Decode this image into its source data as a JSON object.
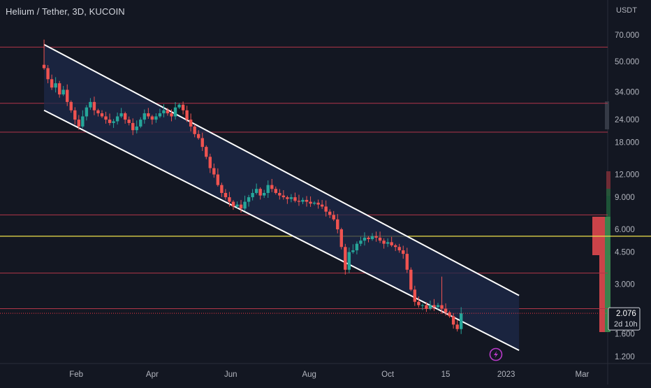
{
  "chart_data": {
    "type": "candlestick",
    "title": "Helium / Tether, 3D, KUCOIN",
    "price_unit": "USDT",
    "y_scale": "log",
    "ylim": [
      1.1,
      85
    ],
    "x_tick_labels": [
      "Feb",
      "Apr",
      "Jun",
      "Aug",
      "Oct",
      "15",
      "2023",
      "Mar"
    ],
    "y_tick_labels": [
      "70.000",
      "50.000",
      "34.000",
      "24.000",
      "18.000",
      "12.000",
      "9.000",
      "6.000",
      "4.500",
      "3.000",
      "1.600",
      "1.200"
    ],
    "last_price": "2.076",
    "countdown": "2d 10h",
    "horizontal_levels": {
      "red": [
        60,
        29.5,
        20.5,
        7.2,
        3.45,
        2.2
      ],
      "yellow": [
        5.5
      ]
    },
    "channel": {
      "upper": [
        [
          "2022-01-07",
          62
        ],
        [
          "2023-01-11",
          2.6
        ]
      ],
      "lower": [
        [
          "2022-01-07",
          27
        ],
        [
          "2023-01-11",
          1.3
        ]
      ]
    },
    "colors": {
      "up": "#26a69a",
      "down": "#ef5350",
      "level_red": "#b2364a",
      "level_yellow": "#f0e14a",
      "channel_fill": "#1e2a4a",
      "last_price_tag": "#f23645"
    },
    "icons": [
      "lightning-icon"
    ]
  }
}
